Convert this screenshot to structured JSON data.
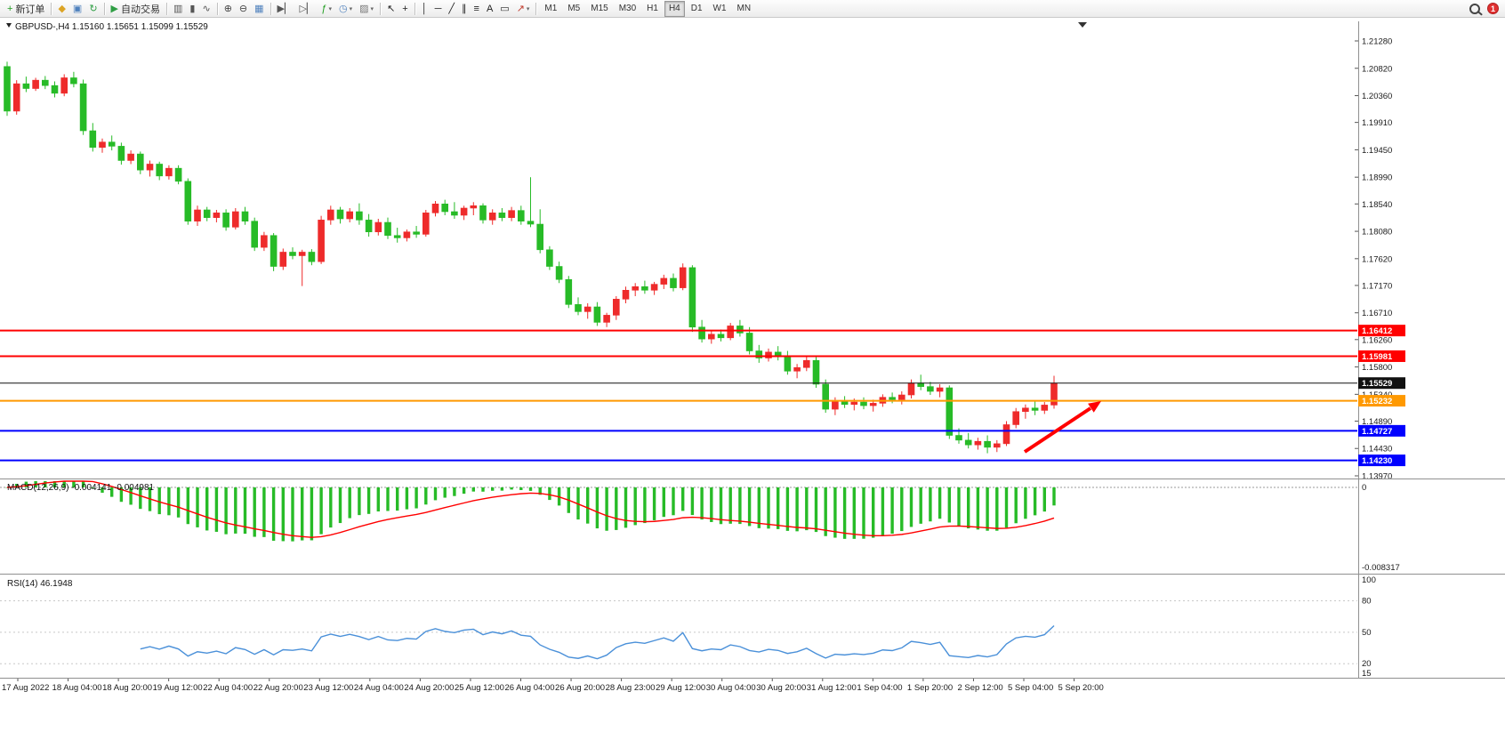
{
  "app": {
    "notification_count": "1"
  },
  "toolbar": {
    "items": [
      {
        "type": "labeled",
        "name": "new-order-button",
        "glyph": "+",
        "glyph_color": "#1f9d1f",
        "label": "新订单"
      },
      {
        "type": "sep"
      },
      {
        "type": "icon",
        "name": "market-watch-icon",
        "glyph": "◆",
        "color": "#dca425"
      },
      {
        "type": "icon",
        "name": "chat-icon",
        "glyph": "▣",
        "color": "#4f81bd"
      },
      {
        "type": "icon",
        "name": "refresh-icon",
        "glyph": "↻",
        "color": "#2f9e44"
      },
      {
        "type": "sep"
      },
      {
        "type": "labeled",
        "name": "autotrade-button",
        "glyph": "▶",
        "glyph_color": "#2f9e44",
        "label": "自动交易"
      },
      {
        "type": "sep"
      },
      {
        "type": "icon",
        "name": "bar-chart-icon",
        "glyph": "▥",
        "color": "#555555"
      },
      {
        "type": "icon",
        "name": "candlestick-chart-icon",
        "glyph": "▮",
        "color": "#555555"
      },
      {
        "type": "icon",
        "name": "line-chart-icon",
        "glyph": "∿",
        "color": "#555555"
      },
      {
        "type": "sep"
      },
      {
        "type": "icon",
        "name": "zoom-in-icon",
        "glyph": "⊕",
        "color": "#444444"
      },
      {
        "type": "icon",
        "name": "zoom-out-icon",
        "glyph": "⊖",
        "color": "#444444"
      },
      {
        "type": "icon",
        "name": "tile-windows-icon",
        "glyph": "▦",
        "color": "#4f81bd"
      },
      {
        "type": "sep"
      },
      {
        "type": "icon",
        "name": "auto-scroll-icon",
        "glyph": "▶▏",
        "color": "#555555"
      },
      {
        "type": "icon",
        "name": "chart-shift-icon",
        "glyph": "▷▏",
        "color": "#555555"
      },
      {
        "type": "icon",
        "name": "indicators-icon",
        "glyph": "ƒ",
        "color": "#1f9d1f",
        "caret": true
      },
      {
        "type": "icon",
        "name": "periods-icon",
        "glyph": "◷",
        "color": "#4f81bd",
        "caret": true
      },
      {
        "type": "icon",
        "name": "templates-icon",
        "glyph": "▨",
        "color": "#777777",
        "caret": true
      },
      {
        "type": "sep"
      },
      {
        "type": "icon",
        "name": "cursor-icon",
        "glyph": "↖",
        "color": "#222222"
      },
      {
        "type": "icon",
        "name": "crosshair-icon",
        "glyph": "+",
        "color": "#222222"
      },
      {
        "type": "sep"
      },
      {
        "type": "icon",
        "name": "vertical-line-icon",
        "glyph": "│",
        "color": "#222222"
      },
      {
        "type": "icon",
        "name": "horizontal-line-icon",
        "glyph": "─",
        "color": "#222222"
      },
      {
        "type": "icon",
        "name": "trendline-icon",
        "glyph": "╱",
        "color": "#222222"
      },
      {
        "type": "icon",
        "name": "equidistant-channel-icon",
        "glyph": "∥",
        "color": "#222222"
      },
      {
        "type": "icon",
        "name": "fibonacci-icon",
        "glyph": "≡",
        "color": "#222222"
      },
      {
        "type": "icon",
        "name": "text-icon",
        "glyph": "A",
        "color": "#222222"
      },
      {
        "type": "icon",
        "name": "text-label-icon",
        "glyph": "▭",
        "color": "#222222"
      },
      {
        "type": "icon",
        "name": "arrows-icon",
        "glyph": "↗",
        "color": "#c0392b",
        "caret": true
      },
      {
        "type": "sep"
      }
    ],
    "timeframes": [
      "M1",
      "M5",
      "M15",
      "M30",
      "H1",
      "H4",
      "D1",
      "W1",
      "MN"
    ],
    "active_timeframe": "H4"
  },
  "theme": {
    "background": "#ffffff",
    "bull_color": "#ee2b2b",
    "bear_color": "#27bb27",
    "macd_histogram": "#27bb27",
    "macd_signal": "#ff0000",
    "rsi_line": "#4a90d9",
    "axis_text": "#1a1a1a",
    "separator": "#909090",
    "arrow": "#ff0000"
  },
  "chart_data": {
    "type": "candlestick",
    "symbol": "GBPUSD",
    "period": "H4",
    "title": "GBPUSD-,H4",
    "ohlc_text": "1.15160 1.15651 1.15099 1.15529",
    "current_bar": {
      "open": 1.1516,
      "high": 1.15651,
      "low": 1.15099,
      "close": 1.15529
    },
    "price_range": [
      1.1397,
      1.2128
    ],
    "price_axis_labels": [
      "1.21280",
      "1.20820",
      "1.20360",
      "1.19910",
      "1.19450",
      "1.18990",
      "1.18540",
      "1.18080",
      "1.17620",
      "1.17170",
      "1.16710",
      "1.16260",
      "1.15800",
      "1.15340",
      "1.14890",
      "1.14430",
      "1.13970"
    ],
    "time_axis_labels": [
      "17 Aug 2022",
      "18 Aug 04:00",
      "18 Aug 20:00",
      "19 Aug 12:00",
      "22 Aug 04:00",
      "22 Aug 20:00",
      "23 Aug 12:00",
      "24 Aug 04:00",
      "24 Aug 20:00",
      "25 Aug 12:00",
      "26 Aug 04:00",
      "26 Aug 20:00",
      "28 Aug 23:00",
      "29 Aug 12:00",
      "30 Aug 04:00",
      "30 Aug 20:00",
      "31 Aug 12:00",
      "1 Sep 04:00",
      "1 Sep 20:00",
      "2 Sep 12:00",
      "5 Sep 04:00",
      "5 Sep 20:00"
    ],
    "hlines": [
      {
        "name": "resistance-line-1",
        "price": 1.16412,
        "label": "1.16412",
        "color": "#ff0000",
        "width": 2
      },
      {
        "name": "resistance-line-2",
        "price": 1.15981,
        "label": "1.15981",
        "color": "#ff0000",
        "width": 2
      },
      {
        "name": "current-price-line",
        "price": 1.15529,
        "label": "1.15529",
        "color": "#111111",
        "width": 1
      },
      {
        "name": "support-line-1",
        "price": 1.15232,
        "label": "1.15232",
        "color": "#ff9900",
        "width": 2
      },
      {
        "name": "support-line-2",
        "price": 1.14727,
        "label": "1.14727",
        "color": "#0000ff",
        "width": 2
      },
      {
        "name": "support-line-3",
        "price": 1.1423,
        "label": "1.14230",
        "color": "#0000ff",
        "width": 2
      }
    ],
    "candles": [
      [
        1.2085,
        1.2093,
        1.2002,
        1.201
      ],
      [
        1.201,
        1.2062,
        1.2004,
        1.2056
      ],
      [
        1.2056,
        1.2068,
        1.2042,
        1.2048
      ],
      [
        1.2048,
        1.2066,
        1.2044,
        1.2062
      ],
      [
        1.2062,
        1.2069,
        1.2047,
        1.2053
      ],
      [
        1.2053,
        1.206,
        1.2033,
        1.204
      ],
      [
        1.204,
        1.2072,
        1.2035,
        1.2066
      ],
      [
        1.2066,
        1.2076,
        1.205,
        1.2056
      ],
      [
        1.2056,
        1.2063,
        1.197,
        1.1977
      ],
      [
        1.1977,
        1.199,
        1.1942,
        1.1949
      ],
      [
        1.1949,
        1.1964,
        1.194,
        1.1958
      ],
      [
        1.1958,
        1.1969,
        1.1944,
        1.1951
      ],
      [
        1.1951,
        1.1957,
        1.192,
        1.1927
      ],
      [
        1.1927,
        1.1944,
        1.1921,
        1.1938
      ],
      [
        1.1938,
        1.1942,
        1.1904,
        1.1911
      ],
      [
        1.1911,
        1.1927,
        1.19,
        1.1921
      ],
      [
        1.1921,
        1.1925,
        1.1894,
        1.1901
      ],
      [
        1.1901,
        1.1919,
        1.1895,
        1.1914
      ],
      [
        1.1914,
        1.1919,
        1.1887,
        1.1892
      ],
      [
        1.1892,
        1.1897,
        1.1819,
        1.1825
      ],
      [
        1.1825,
        1.1851,
        1.1817,
        1.1844
      ],
      [
        1.1844,
        1.1849,
        1.1825,
        1.1831
      ],
      [
        1.1831,
        1.1844,
        1.1823,
        1.1839
      ],
      [
        1.1839,
        1.1845,
        1.1809,
        1.1815
      ],
      [
        1.1815,
        1.1847,
        1.1811,
        1.1841
      ],
      [
        1.1841,
        1.1849,
        1.1819,
        1.1825
      ],
      [
        1.1825,
        1.1831,
        1.1775,
        1.1781
      ],
      [
        1.1781,
        1.1807,
        1.1775,
        1.1801
      ],
      [
        1.1801,
        1.1805,
        1.1741,
        1.1749
      ],
      [
        1.1749,
        1.1779,
        1.1743,
        1.1773
      ],
      [
        1.1773,
        1.1781,
        1.1761,
        1.1767
      ],
      [
        1.1767,
        1.1777,
        1.1716,
        1.1773
      ],
      [
        1.1773,
        1.1778,
        1.1751,
        1.1757
      ],
      [
        1.1757,
        1.1834,
        1.1753,
        1.1827
      ],
      [
        1.1827,
        1.1851,
        1.1819,
        1.1844
      ],
      [
        1.1844,
        1.1849,
        1.1821,
        1.1829
      ],
      [
        1.1829,
        1.1847,
        1.1823,
        1.1841
      ],
      [
        1.1841,
        1.1855,
        1.1819,
        1.1827
      ],
      [
        1.1827,
        1.1837,
        1.1799,
        1.1807
      ],
      [
        1.1807,
        1.1829,
        1.1801,
        1.1823
      ],
      [
        1.1823,
        1.1831,
        1.1795,
        1.1801
      ],
      [
        1.1801,
        1.1814,
        1.1789,
        1.1797
      ],
      [
        1.1797,
        1.1811,
        1.1791,
        1.1807
      ],
      [
        1.1807,
        1.1817,
        1.1797,
        1.1803
      ],
      [
        1.1803,
        1.1844,
        1.1799,
        1.1839
      ],
      [
        1.1839,
        1.1859,
        1.1833,
        1.1854
      ],
      [
        1.1854,
        1.1861,
        1.1835,
        1.1841
      ],
      [
        1.1841,
        1.1857,
        1.1829,
        1.1835
      ],
      [
        1.1835,
        1.1851,
        1.1827,
        1.1847
      ],
      [
        1.1847,
        1.1857,
        1.1835,
        1.1851
      ],
      [
        1.1851,
        1.1855,
        1.1821,
        1.1827
      ],
      [
        1.1827,
        1.1845,
        1.1819,
        1.1839
      ],
      [
        1.1839,
        1.1847,
        1.1825,
        1.1831
      ],
      [
        1.1831,
        1.1849,
        1.1825,
        1.1843
      ],
      [
        1.1843,
        1.1851,
        1.1819,
        1.1825
      ],
      [
        1.1825,
        1.1899,
        1.1815,
        1.182
      ],
      [
        1.182,
        1.1845,
        1.1771,
        1.1777
      ],
      [
        1.1777,
        1.1783,
        1.1743,
        1.1749
      ],
      [
        1.1749,
        1.1757,
        1.1721,
        1.1727
      ],
      [
        1.1727,
        1.1733,
        1.1679,
        1.1685
      ],
      [
        1.1685,
        1.1697,
        1.1667,
        1.1673
      ],
      [
        1.1673,
        1.1687,
        1.1661,
        1.1681
      ],
      [
        1.1681,
        1.1689,
        1.1649,
        1.1655
      ],
      [
        1.1655,
        1.1671,
        1.1647,
        1.1667
      ],
      [
        1.1667,
        1.1699,
        1.1659,
        1.1694
      ],
      [
        1.1694,
        1.1715,
        1.1687,
        1.1709
      ],
      [
        1.1709,
        1.1721,
        1.1699,
        1.1715
      ],
      [
        1.1715,
        1.1725,
        1.1703,
        1.1709
      ],
      [
        1.1709,
        1.1723,
        1.1701,
        1.1719
      ],
      [
        1.1719,
        1.1735,
        1.1711,
        1.1729
      ],
      [
        1.1729,
        1.1737,
        1.1707,
        1.1713
      ],
      [
        1.1713,
        1.1754,
        1.1709,
        1.1747
      ],
      [
        1.1747,
        1.1751,
        1.1639,
        1.1647
      ],
      [
        1.1647,
        1.1659,
        1.1621,
        1.1627
      ],
      [
        1.1627,
        1.1641,
        1.1619,
        1.1635
      ],
      [
        1.1635,
        1.1643,
        1.1623,
        1.1629
      ],
      [
        1.1629,
        1.1654,
        1.1625,
        1.1649
      ],
      [
        1.1649,
        1.1659,
        1.1631,
        1.1637
      ],
      [
        1.1637,
        1.1647,
        1.1601,
        1.1607
      ],
      [
        1.1607,
        1.1617,
        1.1587,
        1.1595
      ],
      [
        1.1595,
        1.1611,
        1.1589,
        1.1605
      ],
      [
        1.1605,
        1.1615,
        1.1591,
        1.1597
      ],
      [
        1.1597,
        1.1607,
        1.1567,
        1.1573
      ],
      [
        1.1573,
        1.1585,
        1.1561,
        1.1579
      ],
      [
        1.1579,
        1.1597,
        1.1573,
        1.1591
      ],
      [
        1.1591,
        1.1599,
        1.1545,
        1.1551
      ],
      [
        1.1551,
        1.1559,
        1.1503,
        1.1509
      ],
      [
        1.1509,
        1.1529,
        1.1499,
        1.1523
      ],
      [
        1.1523,
        1.1531,
        1.1511,
        1.1517
      ],
      [
        1.1517,
        1.1527,
        1.1507,
        1.1521
      ],
      [
        1.1521,
        1.1529,
        1.1509,
        1.1515
      ],
      [
        1.1515,
        1.1525,
        1.1505,
        1.1519
      ],
      [
        1.1519,
        1.1534,
        1.1513,
        1.1529
      ],
      [
        1.1529,
        1.1537,
        1.1519,
        1.1525
      ],
      [
        1.1525,
        1.1539,
        1.1517,
        1.1533
      ],
      [
        1.1533,
        1.1559,
        1.1527,
        1.1553
      ],
      [
        1.1553,
        1.1567,
        1.1541,
        1.1547
      ],
      [
        1.1547,
        1.1555,
        1.1533,
        1.1539
      ],
      [
        1.1539,
        1.1551,
        1.1529,
        1.1545
      ],
      [
        1.1545,
        1.1549,
        1.1459,
        1.1465
      ],
      [
        1.1465,
        1.1477,
        1.1451,
        1.1457
      ],
      [
        1.1457,
        1.1469,
        1.1443,
        1.1449
      ],
      [
        1.1449,
        1.1461,
        1.1441,
        1.1455
      ],
      [
        1.1455,
        1.1465,
        1.1435,
        1.1445
      ],
      [
        1.1445,
        1.1457,
        1.1437,
        1.1451
      ],
      [
        1.1451,
        1.1489,
        1.1447,
        1.1483
      ],
      [
        1.1483,
        1.1511,
        1.1477,
        1.1505
      ],
      [
        1.1505,
        1.1517,
        1.1493,
        1.1511
      ],
      [
        1.1511,
        1.1523,
        1.1499,
        1.1507
      ],
      [
        1.1507,
        1.1521,
        1.1501,
        1.1516
      ],
      [
        1.1516,
        1.15651,
        1.15099,
        1.15529
      ]
    ],
    "indicators": [
      {
        "name": "macd",
        "label": "MACD(12,26,9)",
        "values_text": "-0.004141 -0.004981",
        "params": [
          12,
          26,
          9
        ],
        "axis_max_label": "0",
        "axis_min_label": "-0.008317"
      },
      {
        "name": "rsi",
        "label": "RSI(14)",
        "values_text": "46.1948",
        "params": [
          14
        ],
        "axis_labels": [
          "100",
          "80",
          "50",
          "20",
          "15"
        ],
        "levels": [
          80,
          50,
          20
        ]
      }
    ],
    "annotations": [
      {
        "type": "arrow",
        "color": "#ff0000",
        "direction": "up-right",
        "note": "bullish bounce arrow"
      }
    ]
  }
}
